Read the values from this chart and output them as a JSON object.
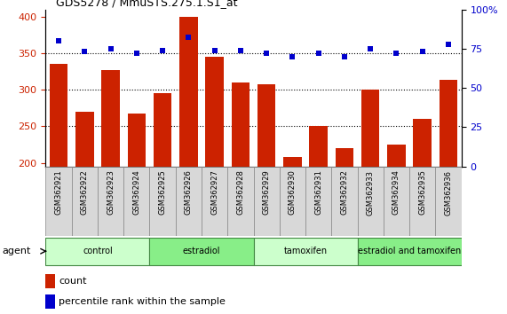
{
  "title": "GDS5278 / MmuSTS.275.1.S1_at",
  "samples": [
    "GSM362921",
    "GSM362922",
    "GSM362923",
    "GSM362924",
    "GSM362925",
    "GSM362926",
    "GSM362927",
    "GSM362928",
    "GSM362929",
    "GSM362930",
    "GSM362931",
    "GSM362932",
    "GSM362933",
    "GSM362934",
    "GSM362935",
    "GSM362936"
  ],
  "counts": [
    335,
    270,
    327,
    268,
    295,
    400,
    345,
    310,
    307,
    208,
    251,
    220,
    300,
    225,
    260,
    313
  ],
  "percentiles": [
    80,
    73,
    75,
    72,
    74,
    82,
    74,
    74,
    72,
    70,
    72,
    70,
    75,
    72,
    73,
    78
  ],
  "groups": [
    {
      "label": "control",
      "start": 0,
      "end": 4,
      "color": "#ccffcc"
    },
    {
      "label": "estradiol",
      "start": 4,
      "end": 8,
      "color": "#88ee88"
    },
    {
      "label": "tamoxifen",
      "start": 8,
      "end": 12,
      "color": "#ccffcc"
    },
    {
      "label": "estradiol and tamoxifen",
      "start": 12,
      "end": 16,
      "color": "#88ee88"
    }
  ],
  "ylim_left": [
    195,
    410
  ],
  "ylim_right": [
    0,
    100
  ],
  "bar_color": "#cc2200",
  "dot_color": "#0000cc",
  "grid_color": "#000000",
  "bg_color": "#ffffff",
  "plot_bg": "#ffffff",
  "tick_color_left": "#cc2200",
  "tick_color_right": "#0000cc",
  "yticks_left": [
    200,
    250,
    300,
    350,
    400
  ],
  "yticks_right": [
    0,
    25,
    50,
    75,
    100
  ],
  "grid_yticks": [
    250,
    300,
    350
  ],
  "agent_label": "agent",
  "legend_count_label": "count",
  "legend_pct_label": "percentile rank within the sample"
}
